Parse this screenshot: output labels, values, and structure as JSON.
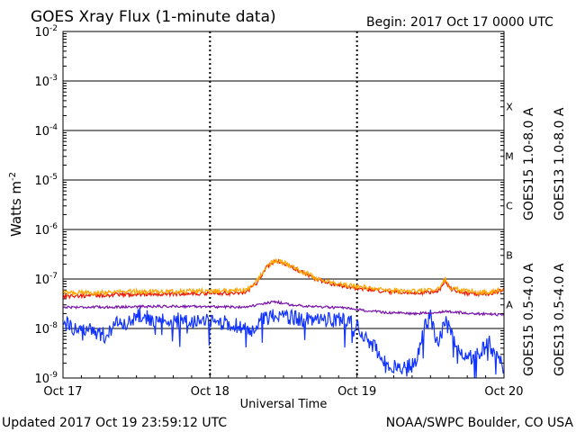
{
  "chart_data": {
    "type": "line",
    "title": "GOES Xray Flux (1-minute data)",
    "begin_label": "Begin:  2017 Oct 17 0000 UTC",
    "ylabel_main": "Watts m",
    "ylabel_sup": "-2",
    "xlabel": "Universal Time",
    "yscale": "log",
    "ylim": [
      1e-09,
      0.01
    ],
    "y_ticks": [
      {
        "exp": -2,
        "base": "10",
        "sup": "-2"
      },
      {
        "exp": -3,
        "base": "10",
        "sup": "-3"
      },
      {
        "exp": -4,
        "base": "10",
        "sup": "-4"
      },
      {
        "exp": -5,
        "base": "10",
        "sup": "-5"
      },
      {
        "exp": -6,
        "base": "10",
        "sup": "-6"
      },
      {
        "exp": -7,
        "base": "10",
        "sup": "-7"
      },
      {
        "exp": -8,
        "base": "10",
        "sup": "-8"
      },
      {
        "exp": -9,
        "base": "10",
        "sup": "-9"
      }
    ],
    "x_range_days": [
      0,
      3
    ],
    "x_ticks": [
      {
        "day": 0,
        "label": "Oct 17"
      },
      {
        "day": 1,
        "label": "Oct 18"
      },
      {
        "day": 2,
        "label": "Oct 19"
      },
      {
        "day": 3,
        "label": "Oct 20"
      }
    ],
    "flare_classes": [
      {
        "label": "X",
        "exp": -3.5
      },
      {
        "label": "M",
        "exp": -4.5
      },
      {
        "label": "C",
        "exp": -5.5
      },
      {
        "label": "B",
        "exp": -6.5
      },
      {
        "label": "A",
        "exp": -7.5
      }
    ],
    "series": [
      {
        "name": "GOES15 1.0-8.0 A",
        "color": "#ee1100",
        "points": [
          [
            0,
            4.5e-08
          ],
          [
            0.2,
            4.6e-08
          ],
          [
            0.4,
            4.8e-08
          ],
          [
            0.6,
            5e-08
          ],
          [
            0.8,
            5e-08
          ],
          [
            0.95,
            5.1e-08
          ],
          [
            1.18,
            5.2e-08
          ],
          [
            1.25,
            5.5e-08
          ],
          [
            1.32,
            8.5e-08
          ],
          [
            1.38,
            1.7e-07
          ],
          [
            1.44,
            2.3e-07
          ],
          [
            1.5,
            2.1e-07
          ],
          [
            1.56,
            1.7e-07
          ],
          [
            1.64,
            1.3e-07
          ],
          [
            1.72,
            1e-07
          ],
          [
            1.82,
            8e-08
          ],
          [
            1.92,
            7e-08
          ],
          [
            2.0,
            6.5e-08
          ],
          [
            2.1,
            6e-08
          ],
          [
            2.2,
            5.5e-08
          ],
          [
            2.3,
            5.3e-08
          ],
          [
            2.4,
            5.2e-08
          ],
          [
            2.5,
            5.5e-08
          ],
          [
            2.56,
            6e-08
          ],
          [
            2.6,
            9.5e-08
          ],
          [
            2.63,
            6.5e-08
          ],
          [
            2.7,
            5.3e-08
          ],
          [
            2.8,
            5e-08
          ],
          [
            2.9,
            5e-08
          ],
          [
            3.0,
            6e-08
          ]
        ]
      },
      {
        "name": "GOES13 1.0-8.0 A",
        "color": "#ffa500",
        "points": [
          [
            0,
            5.2e-08
          ],
          [
            0.2,
            5.3e-08
          ],
          [
            0.4,
            5.5e-08
          ],
          [
            0.6,
            5.6e-08
          ],
          [
            0.8,
            5.6e-08
          ],
          [
            0.95,
            5.7e-08
          ],
          [
            1.18,
            5.8e-08
          ],
          [
            1.25,
            6.1e-08
          ],
          [
            1.32,
            9e-08
          ],
          [
            1.38,
            1.75e-07
          ],
          [
            1.44,
            2.35e-07
          ],
          [
            1.5,
            2.15e-07
          ],
          [
            1.56,
            1.75e-07
          ],
          [
            1.64,
            1.35e-07
          ],
          [
            1.72,
            1.05e-07
          ],
          [
            1.82,
            8.5e-08
          ],
          [
            1.92,
            7.5e-08
          ],
          [
            2.0,
            7e-08
          ],
          [
            2.1,
            6.6e-08
          ],
          [
            2.2,
            6e-08
          ],
          [
            2.3,
            5.8e-08
          ],
          [
            2.4,
            5.7e-08
          ],
          [
            2.5,
            6e-08
          ],
          [
            2.56,
            6.5e-08
          ],
          [
            2.6,
            1e-07
          ],
          [
            2.63,
            7e-08
          ],
          [
            2.7,
            5.8e-08
          ],
          [
            2.8,
            5.5e-08
          ],
          [
            2.9,
            5.5e-08
          ],
          [
            3.0,
            6.3e-08
          ]
        ]
      },
      {
        "name": "GOES15 0.5-4.0 A",
        "color": "#1133ff",
        "points": [
          [
            0,
            1.3e-08
          ],
          [
            0.1,
            1e-08
          ],
          [
            0.2,
            9e-09
          ],
          [
            0.3,
            7e-09
          ],
          [
            0.38,
            1.4e-08
          ],
          [
            0.45,
            1.3e-08
          ],
          [
            0.5,
            2e-08
          ],
          [
            0.6,
            1.5e-08
          ],
          [
            0.8,
            1.5e-08
          ],
          [
            0.95,
            1.4e-08
          ],
          [
            1.1,
            1.3e-08
          ],
          [
            1.2,
            1.1e-08
          ],
          [
            1.3,
            9e-09
          ],
          [
            1.35,
            1.6e-08
          ],
          [
            1.45,
            1.8e-08
          ],
          [
            1.6,
            1.6e-08
          ],
          [
            1.8,
            1.5e-08
          ],
          [
            1.95,
            1.4e-08
          ],
          [
            2.0,
            1.1e-08
          ],
          [
            2.1,
            5e-09
          ],
          [
            2.2,
            2e-09
          ],
          [
            2.3,
            1.5e-09
          ],
          [
            2.4,
            2e-09
          ],
          [
            2.45,
            1e-08
          ],
          [
            2.5,
            1.8e-08
          ],
          [
            2.55,
            4e-09
          ],
          [
            2.6,
            1.5e-08
          ],
          [
            2.7,
            3e-09
          ],
          [
            2.8,
            2.5e-09
          ],
          [
            2.9,
            5e-09
          ],
          [
            3.0,
            1.5e-09
          ]
        ]
      },
      {
        "name": "GOES13 0.5-4.0 A",
        "color": "#7711aa",
        "points": [
          [
            0,
            2.7e-08
          ],
          [
            0.3,
            2.7e-08
          ],
          [
            0.6,
            2.8e-08
          ],
          [
            0.9,
            2.8e-08
          ],
          [
            1.2,
            2.7e-08
          ],
          [
            1.3,
            2.9e-08
          ],
          [
            1.38,
            3.2e-08
          ],
          [
            1.44,
            3.5e-08
          ],
          [
            1.55,
            3e-08
          ],
          [
            1.7,
            2.8e-08
          ],
          [
            1.9,
            2.6e-08
          ],
          [
            2.0,
            2.4e-08
          ],
          [
            2.2,
            2.1e-08
          ],
          [
            2.4,
            2e-08
          ],
          [
            2.6,
            2.2e-08
          ],
          [
            2.8,
            2e-08
          ],
          [
            3.0,
            1.9e-08
          ]
        ]
      }
    ]
  },
  "footer": {
    "updated": "Updated 2017 Oct 19 23:59:12 UTC",
    "credit": "NOAA/SWPC Boulder, CO USA"
  }
}
